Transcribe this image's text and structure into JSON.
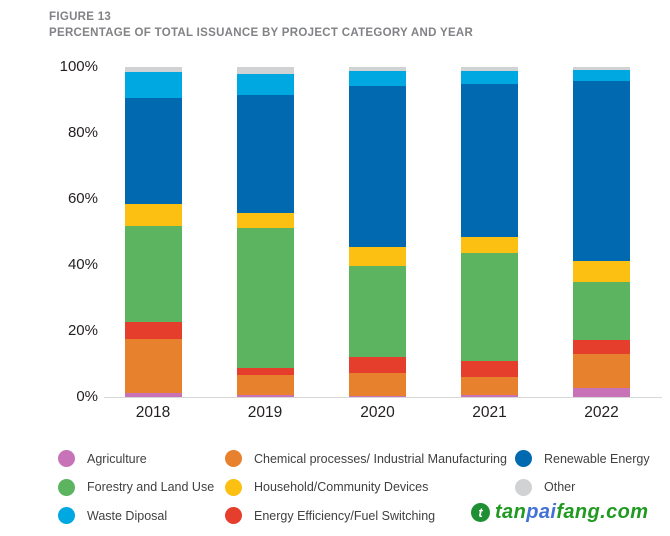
{
  "header": {
    "figure_label": "FIGURE 13",
    "title": "PERCENTAGE OF TOTAL ISSUANCE BY PROJECT CATEGORY AND YEAR"
  },
  "chart_data": {
    "type": "bar",
    "stacked": true,
    "title": "PERCENTAGE OF TOTAL ISSUANCE BY PROJECT CATEGORY AND YEAR",
    "figure_label": "FIGURE 13",
    "categories": [
      "2018",
      "2019",
      "2020",
      "2021",
      "2022"
    ],
    "unit": "percent",
    "ylim": [
      0,
      100
    ],
    "yticks": [
      "100%",
      "80%",
      "60%",
      "40%",
      "20%",
      "0%"
    ],
    "grid": false,
    "legend_position": "bottom",
    "series": [
      {
        "name": "Agriculture",
        "color": "#c873b8",
        "values": [
          1.1,
          0.5,
          0.3,
          0.5,
          2.8
        ]
      },
      {
        "name": "Chemical processes/ Industrial Manufacturing",
        "color": "#e8812d",
        "values": [
          16.6,
          6.1,
          6.9,
          5.7,
          10.2
        ]
      },
      {
        "name": "Energy Efficiency/Fuel Switching",
        "color": "#e53e2d",
        "values": [
          5.1,
          2.3,
          5.0,
          4.8,
          4.4
        ]
      },
      {
        "name": "Forestry and Land Use",
        "color": "#5cb460",
        "values": [
          28.9,
          42.2,
          27.5,
          32.8,
          17.5
        ]
      },
      {
        "name": "Household/Community Devices",
        "color": "#fcc013",
        "values": [
          6.8,
          4.6,
          5.8,
          4.8,
          6.3
        ]
      },
      {
        "name": "Renewable Energy",
        "color": "#0069b0",
        "values": [
          32.0,
          35.9,
          48.8,
          46.4,
          54.5
        ]
      },
      {
        "name": "Waste Diposal",
        "color": "#00a8e1",
        "values": [
          8.0,
          6.4,
          4.4,
          3.8,
          3.3
        ]
      },
      {
        "name": "Other",
        "color": "#d0d2d3",
        "values": [
          1.5,
          2.0,
          1.3,
          1.2,
          1.0
        ]
      }
    ]
  },
  "legend": {
    "items": [
      {
        "label": "Agriculture",
        "color": "#c873b8"
      },
      {
        "label": "Forestry and Land Use",
        "color": "#5cb460"
      },
      {
        "label": "Waste Diposal",
        "color": "#00a8e1"
      },
      {
        "label": "Chemical processes/ Industrial Manufacturing",
        "color": "#e8812d"
      },
      {
        "label": "Household/Community Devices",
        "color": "#fcc013"
      },
      {
        "label": "Energy Efficiency/Fuel Switching",
        "color": "#e53e2d"
      },
      {
        "label": "Renewable Energy",
        "color": "#0069b0"
      },
      {
        "label": "Other",
        "color": "#d0d2d3"
      }
    ]
  },
  "watermark": {
    "logo": "tanpaifang-logo",
    "logo_color": "#1f8f33",
    "logo_glyph": "t",
    "site_parts": [
      {
        "text": "tan",
        "color": "#219a21"
      },
      {
        "text": "pai",
        "color": "#4472d4"
      },
      {
        "text": "fang.com",
        "color": "#219a21"
      }
    ]
  }
}
